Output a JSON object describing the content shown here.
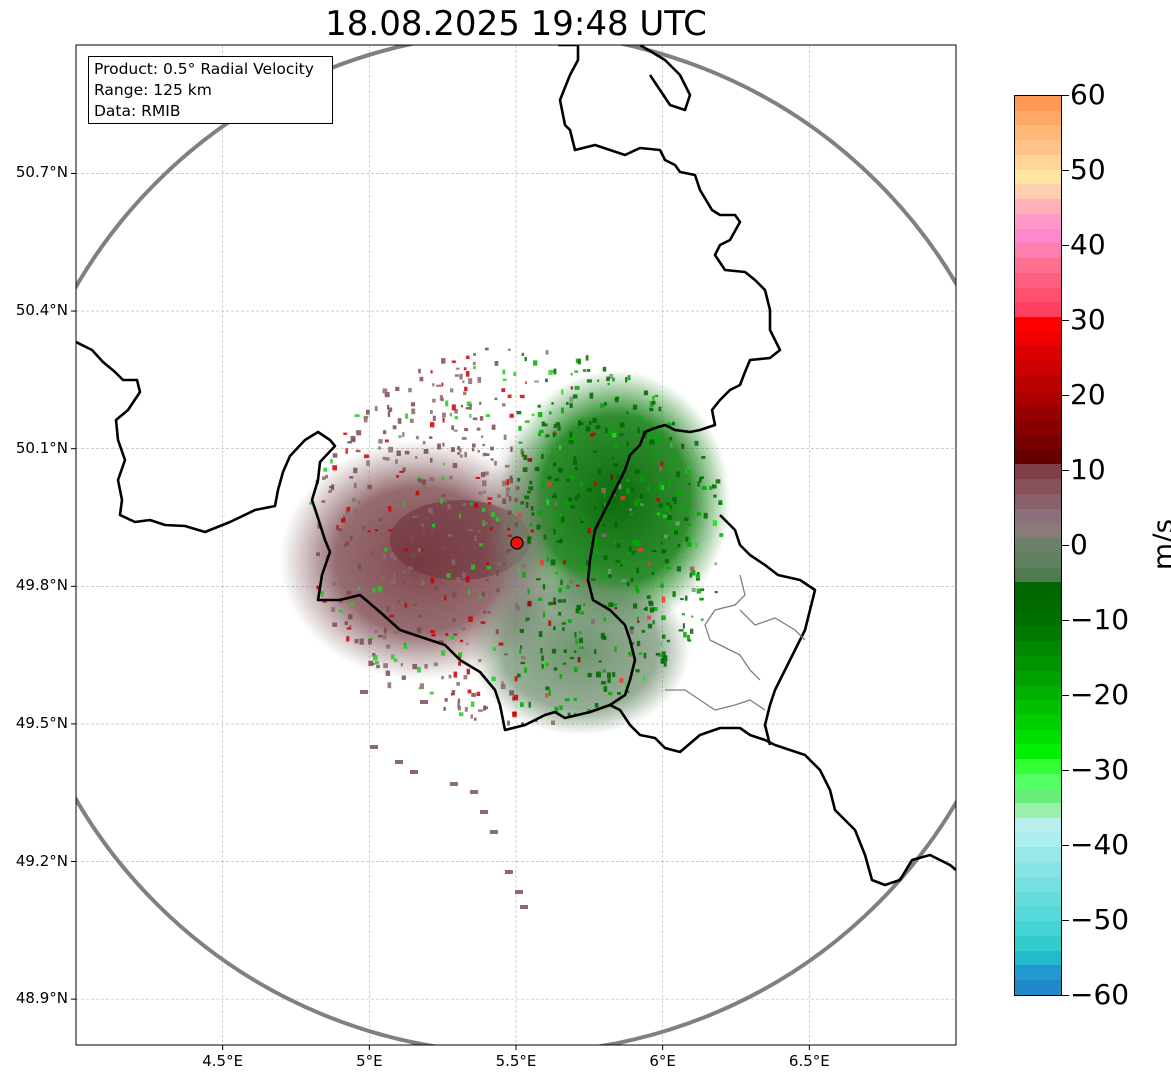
{
  "title": "18.08.2025 19:48 UTC",
  "info_box": {
    "product": "Product: 0.5° Radial Velocity",
    "range": "Range: 125 km",
    "data": "Data: RMIB"
  },
  "map": {
    "lon_range": [
      4.0,
      7.0
    ],
    "lat_range": [
      48.8,
      50.98
    ],
    "radar_site": {
      "lon": 5.5,
      "lat": 49.914
    },
    "range_ring_color": "#808080",
    "border_color": "#000000",
    "grid": true,
    "lat_ticks": [
      {
        "value": 50.7,
        "label": "50.7°N"
      },
      {
        "value": 50.4,
        "label": "50.4°N"
      },
      {
        "value": 50.1,
        "label": "50.1°N"
      },
      {
        "value": 49.8,
        "label": "49.8°N"
      },
      {
        "value": 49.5,
        "label": "49.5°N"
      },
      {
        "value": 49.2,
        "label": "49.2°N"
      },
      {
        "value": 48.9,
        "label": "48.9°N"
      }
    ],
    "lon_ticks": [
      {
        "value": 4.5,
        "label": "4.5°E"
      },
      {
        "value": 5.0,
        "label": "5°E"
      },
      {
        "value": 5.5,
        "label": "5.5°E"
      },
      {
        "value": 6.0,
        "label": "6°E"
      },
      {
        "value": 6.5,
        "label": "6.5°E"
      }
    ],
    "echo_regions": [
      {
        "name": "inbound-west",
        "color": "#8a5c62",
        "lon": 5.25,
        "lat": 49.9
      },
      {
        "name": "inbound-core",
        "color": "#7a3c44",
        "lon": 5.35,
        "lat": 49.92
      },
      {
        "name": "outbound-east",
        "color": "#0a6e0a",
        "lon": 5.85,
        "lat": 49.98
      },
      {
        "name": "outbound-south",
        "color": "#5f8a5f",
        "lon": 5.75,
        "lat": 49.78
      }
    ]
  },
  "colorbar": {
    "unit": "m/s",
    "min": -60,
    "max": 60,
    "ticks": [
      "60",
      "50",
      "40",
      "30",
      "20",
      "10",
      "0",
      "−10",
      "−20",
      "−30",
      "−40",
      "−50",
      "−60"
    ],
    "colors_top_to_bottom": [
      "#ff9955",
      "#ffa866",
      "#ffb877",
      "#ffc288",
      "#ffd59a",
      "#ffe6a0",
      "#ffd0b0",
      "#ffb0b8",
      "#ff99c8",
      "#ff88cc",
      "#ff80b0",
      "#ff7090",
      "#ff6080",
      "#ff5070",
      "#ff4060",
      "#ff0000",
      "#ee0000",
      "#dd0000",
      "#cc0000",
      "#bb0000",
      "#aa0000",
      "#990000",
      "#880000",
      "#770000",
      "#660000",
      "#804048",
      "#88505a",
      "#8a606a",
      "#8a7078",
      "#8a7a78",
      "#6a8068",
      "#608060",
      "#507a50",
      "#006600",
      "#006a00",
      "#007000",
      "#007a00",
      "#008800",
      "#009400",
      "#00a000",
      "#00b000",
      "#00c000",
      "#00d000",
      "#00e000",
      "#00f000",
      "#33ff33",
      "#55ff66",
      "#66ee77",
      "#99f0aa",
      "#bbeeee",
      "#aaeeee",
      "#99e8e8",
      "#88e4e4",
      "#77e0e0",
      "#66dddd",
      "#55d8d8",
      "#44d4d4",
      "#33cccc",
      "#22bbcc",
      "#2299cc",
      "#2288cc"
    ]
  }
}
